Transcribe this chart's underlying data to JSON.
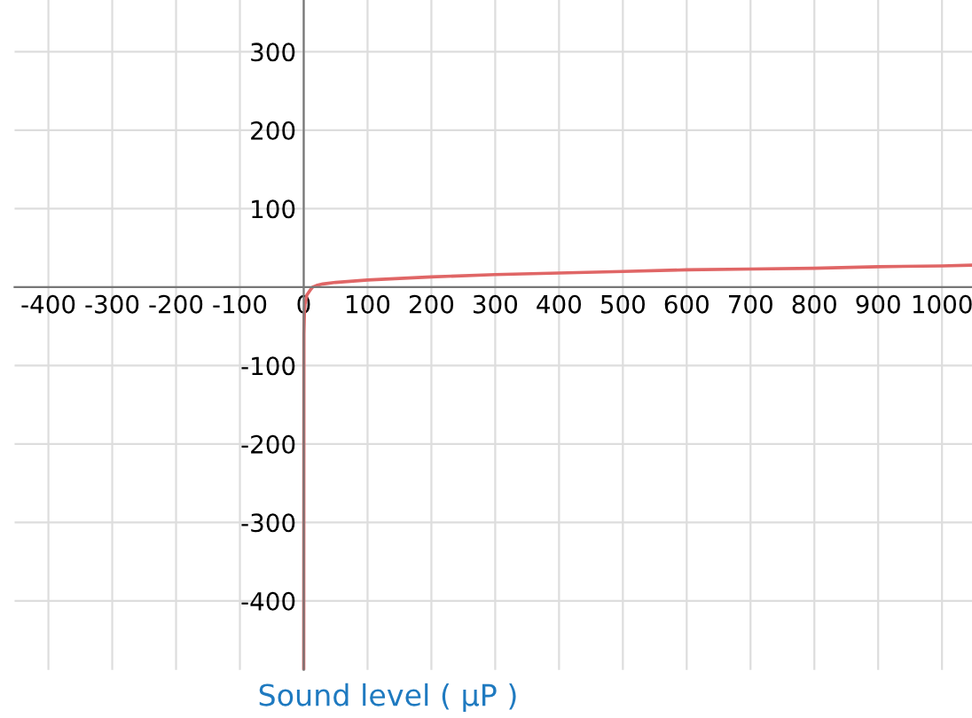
{
  "chart_data": {
    "type": "line",
    "xlabel": "Sound level ( μP )",
    "x": [
      0.01,
      0.3,
      1,
      2,
      5,
      10,
      14,
      20,
      30,
      50,
      100,
      200,
      300,
      400,
      500,
      600,
      700,
      800,
      900,
      1000,
      1047
    ],
    "series": [
      {
        "color": "#e06666",
        "values": [
          -488,
          -60,
          -35,
          -22,
          -10,
          -4,
          0,
          2,
          4,
          6,
          9,
          13,
          16,
          18,
          20,
          22,
          23,
          24,
          26,
          27,
          28
        ]
      }
    ],
    "xlim": [
      -453,
      1047
    ],
    "ylim": [
      -488,
      366
    ],
    "xticks": [
      -400,
      -300,
      -200,
      -100,
      0,
      100,
      200,
      300,
      400,
      500,
      600,
      700,
      800,
      900,
      1000
    ],
    "yticks": [
      -400,
      -300,
      -200,
      -100,
      100,
      200,
      300
    ],
    "grid": true,
    "marker": "none",
    "line_style": "solid"
  }
}
